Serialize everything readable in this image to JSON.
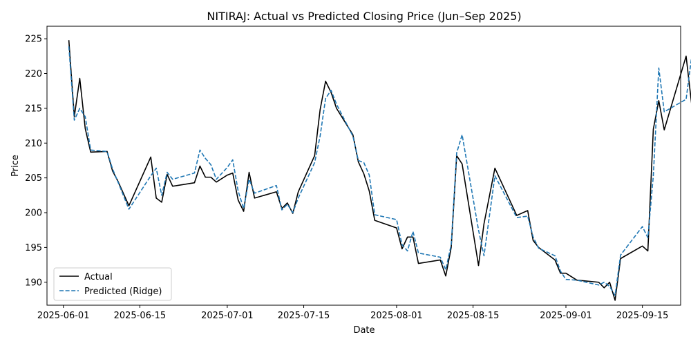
{
  "chart_data": {
    "type": "line",
    "title": "NITIRAJ: Actual vs Predicted Closing Price (Jun–Sep 2025)",
    "xlabel": "Date",
    "ylabel": "Price",
    "ylim": [
      186.7,
      226.8
    ],
    "xlim": [
      "2025-05-29",
      "2025-09-22"
    ],
    "x_ticks": [
      "2025-06-01",
      "2025-06-15",
      "2025-07-01",
      "2025-07-15",
      "2025-08-01",
      "2025-08-15",
      "2025-09-01",
      "2025-09-15"
    ],
    "y_ticks": [
      190,
      195,
      200,
      205,
      210,
      215,
      220,
      225
    ],
    "grid": false,
    "legend_position": "lower-left",
    "series": [
      {
        "name": "Actual",
        "color": "#000000",
        "style": "solid",
        "points": [
          [
            "2025-06-02",
            224.8
          ],
          [
            "2025-06-03",
            213.8
          ],
          [
            "2025-06-04",
            219.3
          ],
          [
            "2025-06-05",
            212.1
          ],
          [
            "2025-06-06",
            208.7
          ],
          [
            "2025-06-09",
            208.8
          ],
          [
            "2025-06-10",
            206.0
          ],
          [
            "2025-06-11",
            204.5
          ],
          [
            "2025-06-13",
            201.0
          ],
          [
            "2025-06-17",
            208.0
          ],
          [
            "2025-06-18",
            202.1
          ],
          [
            "2025-06-19",
            201.5
          ],
          [
            "2025-06-20",
            205.5
          ],
          [
            "2025-06-21",
            203.8
          ],
          [
            "2025-06-25",
            204.3
          ],
          [
            "2025-06-26",
            206.7
          ],
          [
            "2025-06-27",
            205.1
          ],
          [
            "2025-06-28",
            205.1
          ],
          [
            "2025-06-29",
            204.4
          ],
          [
            "2025-07-01",
            205.4
          ],
          [
            "2025-07-02",
            205.7
          ],
          [
            "2025-07-03",
            201.8
          ],
          [
            "2025-07-04",
            200.2
          ],
          [
            "2025-07-05",
            205.8
          ],
          [
            "2025-07-06",
            202.1
          ],
          [
            "2025-07-10",
            203.0
          ],
          [
            "2025-07-11",
            200.6
          ],
          [
            "2025-07-12",
            201.4
          ],
          [
            "2025-07-13",
            199.9
          ],
          [
            "2025-07-14",
            203.0
          ],
          [
            "2025-07-17",
            208.2
          ],
          [
            "2025-07-18",
            214.8
          ],
          [
            "2025-07-19",
            218.9
          ],
          [
            "2025-07-20",
            217.3
          ],
          [
            "2025-07-21",
            215.0
          ],
          [
            "2025-07-24",
            211.2
          ],
          [
            "2025-07-25",
            207.3
          ],
          [
            "2025-07-26",
            205.6
          ],
          [
            "2025-07-27",
            203.1
          ],
          [
            "2025-07-28",
            198.9
          ],
          [
            "2025-08-01",
            197.8
          ],
          [
            "2025-08-02",
            194.8
          ],
          [
            "2025-08-03",
            196.5
          ],
          [
            "2025-08-04",
            196.5
          ],
          [
            "2025-08-05",
            192.7
          ],
          [
            "2025-08-09",
            193.2
          ],
          [
            "2025-08-10",
            190.9
          ],
          [
            "2025-08-11",
            195.0
          ],
          [
            "2025-08-12",
            208.2
          ],
          [
            "2025-08-13",
            207.0
          ],
          [
            "2025-08-16",
            192.4
          ],
          [
            "2025-08-17",
            198.4
          ],
          [
            "2025-08-19",
            206.4
          ],
          [
            "2025-08-23",
            199.6
          ],
          [
            "2025-08-25",
            200.3
          ],
          [
            "2025-08-26",
            196.0
          ],
          [
            "2025-08-27",
            195.0
          ],
          [
            "2025-08-30",
            193.2
          ],
          [
            "2025-08-31",
            191.3
          ],
          [
            "2025-09-01",
            191.3
          ],
          [
            "2025-09-03",
            190.3
          ],
          [
            "2025-09-07",
            190.0
          ],
          [
            "2025-09-08",
            189.2
          ],
          [
            "2025-09-09",
            190.0
          ],
          [
            "2025-09-10",
            187.4
          ],
          [
            "2025-09-11",
            193.4
          ],
          [
            "2025-09-15",
            195.2
          ],
          [
            "2025-09-16",
            194.5
          ],
          [
            "2025-09-17",
            212.0
          ],
          [
            "2025-09-18",
            216.1
          ],
          [
            "2025-09-19",
            211.9
          ],
          [
            "2025-09-23",
            222.5
          ],
          [
            "2025-09-24",
            215.7
          ],
          [
            "2025-09-26",
            215.5
          ],
          [
            "2025-09-27",
            211.1
          ]
        ]
      },
      {
        "name": "Predicted (Ridge)",
        "color": "#1f77b4",
        "style": "dashed",
        "points": [
          [
            "2025-06-02",
            223.9
          ],
          [
            "2025-06-03",
            213.3
          ],
          [
            "2025-06-04",
            215.0
          ],
          [
            "2025-06-05",
            213.8
          ],
          [
            "2025-06-06",
            209.0
          ],
          [
            "2025-06-09",
            208.8
          ],
          [
            "2025-06-10",
            206.3
          ],
          [
            "2025-06-11",
            204.4
          ],
          [
            "2025-06-13",
            200.5
          ],
          [
            "2025-06-17",
            205.3
          ],
          [
            "2025-06-18",
            206.4
          ],
          [
            "2025-06-19",
            202.5
          ],
          [
            "2025-06-20",
            205.8
          ],
          [
            "2025-06-21",
            204.8
          ],
          [
            "2025-06-25",
            205.7
          ],
          [
            "2025-06-26",
            209.0
          ],
          [
            "2025-06-27",
            207.8
          ],
          [
            "2025-06-28",
            206.9
          ],
          [
            "2025-06-29",
            204.8
          ],
          [
            "2025-07-01",
            206.5
          ],
          [
            "2025-07-02",
            207.6
          ],
          [
            "2025-07-03",
            203.1
          ],
          [
            "2025-07-04",
            200.6
          ],
          [
            "2025-07-05",
            204.8
          ],
          [
            "2025-07-06",
            202.8
          ],
          [
            "2025-07-10",
            203.9
          ],
          [
            "2025-07-11",
            200.4
          ],
          [
            "2025-07-12",
            201.2
          ],
          [
            "2025-07-13",
            200.0
          ],
          [
            "2025-07-14",
            202.1
          ],
          [
            "2025-07-17",
            207.2
          ],
          [
            "2025-07-18",
            211.0
          ],
          [
            "2025-07-19",
            216.4
          ],
          [
            "2025-07-20",
            217.6
          ],
          [
            "2025-07-21",
            215.6
          ],
          [
            "2025-07-24",
            211.0
          ],
          [
            "2025-07-25",
            207.5
          ],
          [
            "2025-07-26",
            207.2
          ],
          [
            "2025-07-27",
            205.4
          ],
          [
            "2025-07-28",
            199.7
          ],
          [
            "2025-08-01",
            199.0
          ],
          [
            "2025-08-02",
            195.4
          ],
          [
            "2025-08-03",
            194.5
          ],
          [
            "2025-08-04",
            197.3
          ],
          [
            "2025-08-05",
            194.2
          ],
          [
            "2025-08-09",
            193.6
          ],
          [
            "2025-08-10",
            191.8
          ],
          [
            "2025-08-11",
            195.4
          ],
          [
            "2025-08-12",
            208.6
          ],
          [
            "2025-08-13",
            211.2
          ],
          [
            "2025-08-16",
            197.5
          ],
          [
            "2025-08-17",
            193.8
          ],
          [
            "2025-08-19",
            205.3
          ],
          [
            "2025-08-23",
            199.3
          ],
          [
            "2025-08-25",
            199.5
          ],
          [
            "2025-08-26",
            196.5
          ],
          [
            "2025-08-27",
            194.9
          ],
          [
            "2025-08-30",
            193.8
          ],
          [
            "2025-08-31",
            191.6
          ],
          [
            "2025-09-01",
            190.4
          ],
          [
            "2025-09-03",
            190.3
          ],
          [
            "2025-09-07",
            189.6
          ],
          [
            "2025-09-08",
            190.0
          ],
          [
            "2025-09-09",
            189.4
          ],
          [
            "2025-09-10",
            188.1
          ],
          [
            "2025-09-11",
            193.9
          ],
          [
            "2025-09-15",
            198.0
          ],
          [
            "2025-09-16",
            196.4
          ],
          [
            "2025-09-17",
            205.3
          ],
          [
            "2025-09-18",
            220.8
          ],
          [
            "2025-09-19",
            214.5
          ],
          [
            "2025-09-23",
            216.3
          ],
          [
            "2025-09-24",
            222.3
          ],
          [
            "2025-09-26",
            215.3
          ],
          [
            "2025-09-27",
            214.6
          ]
        ]
      }
    ]
  }
}
